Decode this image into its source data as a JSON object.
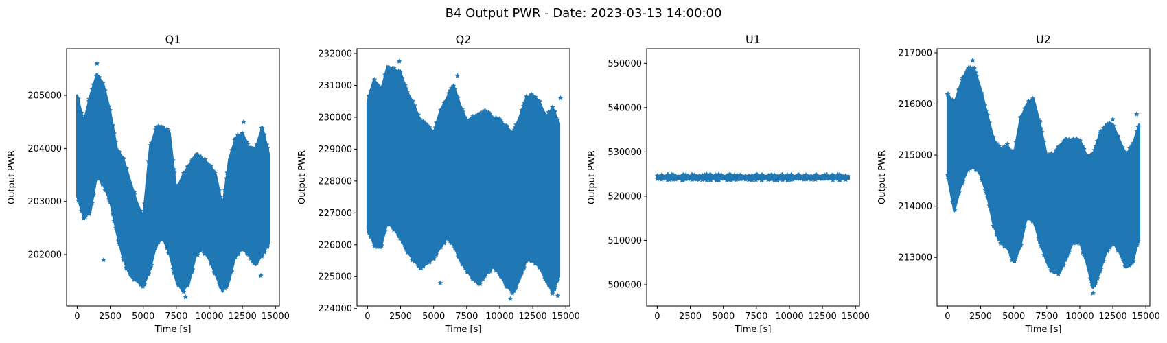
{
  "figure": {
    "suptitle": "B4 Output PWR - Date: 2023-03-13 14:00:00",
    "marker_color": "#1f77b4"
  },
  "chart_data": [
    {
      "type": "scatter",
      "title": "Q1",
      "xlabel": "Time [s]",
      "ylabel": "Output PWR",
      "marker": "star",
      "xlim": [
        -800,
        15300
      ],
      "ylim": [
        201030,
        205880
      ],
      "xticks": [
        0,
        2500,
        5000,
        7500,
        10000,
        12500,
        15000
      ],
      "xtick_labels": [
        "0",
        "2500",
        "5000",
        "7500",
        "10000",
        "12500",
        "15000"
      ],
      "yticks": [
        202000,
        203000,
        204000,
        205000
      ],
      "ytick_labels": [
        "202000",
        "203000",
        "204000",
        "205000"
      ],
      "series": [
        {
          "x": [
            0,
            500,
            1000,
            1500,
            2000,
            2500,
            3000,
            3500,
            4000,
            4500,
            5000,
            5500,
            6000,
            6500,
            7000,
            7500,
            8000,
            8500,
            9000,
            9500,
            10000,
            10500,
            11000,
            11500,
            12000,
            12500,
            13000,
            13500,
            14000,
            14500
          ],
          "upper": [
            205000,
            204500,
            205000,
            205400,
            205200,
            204700,
            204000,
            203800,
            203400,
            203000,
            202700,
            204000,
            204400,
            204400,
            204300,
            203200,
            203500,
            203700,
            203900,
            203800,
            203700,
            203500,
            202900,
            203800,
            204200,
            204300,
            204000,
            204000,
            204400,
            203900
          ],
          "lower": [
            203100,
            202700,
            202800,
            203500,
            203300,
            203000,
            202400,
            201900,
            201600,
            201500,
            201400,
            201700,
            202200,
            202300,
            202000,
            201500,
            201300,
            201500,
            202000,
            202100,
            201900,
            201600,
            201300,
            201500,
            202000,
            202100,
            202000,
            201800,
            202000,
            202200
          ],
          "outliers": [
            [
              1500,
              205600
            ],
            [
              12600,
              204500
            ],
            [
              13900,
              201600
            ],
            [
              7400,
              203300
            ],
            [
              2000,
              201900
            ],
            [
              8200,
              201200
            ]
          ]
        }
      ]
    },
    {
      "type": "scatter",
      "title": "Q2",
      "xlabel": "Time [s]",
      "ylabel": "Output PWR",
      "marker": "star",
      "xlim": [
        -800,
        15300
      ],
      "ylim": [
        224080,
        232150
      ],
      "xticks": [
        0,
        2500,
        5000,
        7500,
        10000,
        12500,
        15000
      ],
      "xtick_labels": [
        "0",
        "2500",
        "5000",
        "7500",
        "10000",
        "12500",
        "15000"
      ],
      "yticks": [
        224000,
        225000,
        226000,
        227000,
        228000,
        229000,
        230000,
        231000,
        232000
      ],
      "ytick_labels": [
        "224000",
        "225000",
        "226000",
        "227000",
        "228000",
        "229000",
        "230000",
        "231000",
        "232000"
      ],
      "series": [
        {
          "x": [
            0,
            500,
            1000,
            1500,
            2000,
            2500,
            3000,
            3500,
            4000,
            4500,
            5000,
            5500,
            6000,
            6500,
            7000,
            7500,
            8000,
            8500,
            9000,
            9500,
            10000,
            10500,
            11000,
            11500,
            12000,
            12500,
            13000,
            13500,
            14000,
            14500
          ],
          "upper": [
            230500,
            231200,
            230800,
            231600,
            231500,
            231400,
            230800,
            230400,
            229900,
            229800,
            229500,
            230200,
            230600,
            231000,
            230400,
            229900,
            230000,
            230100,
            230200,
            230000,
            229900,
            229700,
            229500,
            230000,
            230600,
            230700,
            230500,
            230000,
            230300,
            229800
          ],
          "lower": [
            226500,
            226000,
            225900,
            226700,
            226500,
            226200,
            225800,
            225500,
            225300,
            225400,
            225600,
            225900,
            226200,
            226000,
            225500,
            225200,
            224900,
            224800,
            225100,
            225300,
            225100,
            224700,
            224500,
            224900,
            225500,
            225500,
            225300,
            224900,
            224500,
            225000
          ],
          "outliers": [
            [
              2400,
              231750
            ],
            [
              6800,
              231300
            ],
            [
              5500,
              224800
            ],
            [
              10800,
              224300
            ],
            [
              14400,
              224400
            ],
            [
              14600,
              230600
            ],
            [
              3500,
              230300
            ]
          ]
        }
      ]
    },
    {
      "type": "scatter",
      "title": "U1",
      "xlabel": "Time [s]",
      "ylabel": "Output PWR",
      "marker": "star",
      "xlim": [
        -800,
        15300
      ],
      "ylim": [
        495200,
        553300
      ],
      "xticks": [
        0,
        2500,
        5000,
        7500,
        10000,
        12500,
        15000
      ],
      "xtick_labels": [
        "0",
        "2500",
        "5000",
        "7500",
        "10000",
        "12500",
        "15000"
      ],
      "yticks": [
        500000,
        510000,
        520000,
        530000,
        540000,
        550000
      ],
      "ytick_labels": [
        "500000",
        "510000",
        "520000",
        "530000",
        "540000",
        "550000"
      ],
      "series": [
        {
          "x": [
            0,
            500,
            1000,
            1500,
            2000,
            2500,
            3000,
            3500,
            4000,
            4500,
            5000,
            5500,
            6000,
            6500,
            7000,
            7500,
            8000,
            8500,
            9000,
            9500,
            10000,
            10500,
            11000,
            11500,
            12000,
            12500,
            13000,
            13500,
            14000,
            14500
          ],
          "upper": [
            524600,
            524600,
            524600,
            524600,
            524600,
            524600,
            524600,
            524600,
            524600,
            524600,
            524600,
            524600,
            524600,
            524600,
            524600,
            524600,
            524600,
            524600,
            524600,
            524600,
            524600,
            524600,
            524600,
            524600,
            524600,
            524600,
            524600,
            524600,
            524600,
            524600
          ],
          "lower": [
            523900,
            523900,
            523900,
            523900,
            523900,
            523900,
            523900,
            523900,
            523900,
            523900,
            523900,
            523900,
            523900,
            523900,
            523900,
            523900,
            523900,
            523900,
            523900,
            523900,
            523900,
            523900,
            523900,
            523900,
            523900,
            523900,
            523900,
            523900,
            523900,
            523900
          ],
          "outliers": []
        }
      ]
    },
    {
      "type": "scatter",
      "title": "U2",
      "xlabel": "Time [s]",
      "ylabel": "Output PWR",
      "marker": "star",
      "xlim": [
        -800,
        15300
      ],
      "ylim": [
        212050,
        217080
      ],
      "xticks": [
        0,
        2500,
        5000,
        7500,
        10000,
        12500,
        15000
      ],
      "xtick_labels": [
        "0",
        "2500",
        "5000",
        "7500",
        "10000",
        "12500",
        "15000"
      ],
      "yticks": [
        213000,
        214000,
        215000,
        216000,
        217000
      ],
      "ytick_labels": [
        "213000",
        "214000",
        "215000",
        "216000",
        "217000"
      ],
      "series": [
        {
          "x": [
            0,
            500,
            1000,
            1500,
            2000,
            2500,
            3000,
            3500,
            4000,
            4500,
            5000,
            5500,
            6000,
            6500,
            7000,
            7500,
            8000,
            8500,
            9000,
            9500,
            10000,
            10500,
            11000,
            11500,
            12000,
            12500,
            13000,
            13500,
            14000,
            14500
          ],
          "upper": [
            216200,
            216000,
            216400,
            216700,
            216700,
            216300,
            215800,
            215300,
            215100,
            215200,
            215000,
            215700,
            216000,
            216100,
            215600,
            215000,
            215000,
            215200,
            215300,
            215300,
            215300,
            215000,
            215000,
            215400,
            215600,
            215600,
            215300,
            215000,
            215200,
            215600
          ],
          "lower": [
            214600,
            213900,
            214400,
            214700,
            214800,
            214600,
            214200,
            213600,
            213300,
            213200,
            212900,
            213200,
            213800,
            213700,
            213300,
            212900,
            212700,
            212700,
            213000,
            213300,
            213300,
            212900,
            212400,
            212700,
            213100,
            213300,
            213100,
            212800,
            212900,
            213400
          ],
          "outliers": [
            [
              1900,
              216850
            ],
            [
              12500,
              215700
            ],
            [
              14300,
              215800
            ],
            [
              11000,
              212300
            ],
            [
              4600,
              213400
            ],
            [
              13600,
              212900
            ]
          ]
        }
      ]
    }
  ]
}
